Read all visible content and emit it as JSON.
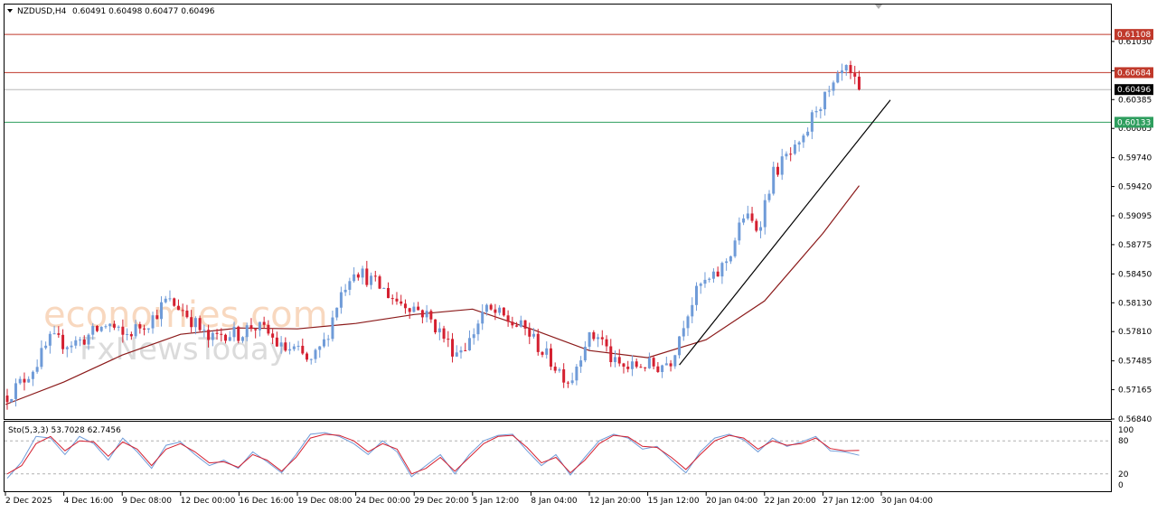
{
  "header": {
    "triangle_icon": "triangle-down-icon",
    "symbol": "NZDUSD,H4",
    "ohlc": "0.60491 0.60498 0.60477 0.60496"
  },
  "watermark": {
    "line1": "economies.com",
    "line2": "FxNewsToday"
  },
  "stochastic": {
    "label": "Sto(5,3,3) 53.7028 62.7456",
    "levels": [
      100,
      80,
      20,
      0
    ]
  },
  "colors": {
    "bull": "#6f9bd8",
    "bear": "#d42030",
    "ma": "#8b1a1a",
    "resistance": "#c0392b",
    "support": "#2e9e5e",
    "current": "#000000",
    "sto_main": "#6f9bd8",
    "sto_signal": "#d42030"
  },
  "chart_data": {
    "type": "candlestick",
    "title": "",
    "symbol": "NZDUSD,H4",
    "ylim": [
      0.5684,
      0.6144
    ],
    "y_ticks": [
      "0.61030",
      "0.60705",
      "0.60385",
      "0.60065",
      "0.59740",
      "0.59420",
      "0.59095",
      "0.58775",
      "0.58450",
      "0.58130",
      "0.57810",
      "0.57485",
      "0.57165",
      "0.56840"
    ],
    "x_ticks": [
      "2 Dec 2025",
      "4 Dec 16:00",
      "9 Dec 08:00",
      "12 Dec 00:00",
      "16 Dec 16:00",
      "19 Dec 08:00",
      "24 Dec 00:00",
      "29 Dec 20:00",
      "5 Jan 12:00",
      "8 Jan 04:00",
      "12 Jan 20:00",
      "15 Jan 12:00",
      "20 Jan 04:00",
      "22 Jan 20:00",
      "27 Jan 12:00",
      "30 Jan 04:00"
    ],
    "horizontal_levels": [
      {
        "value": 0.61108,
        "label": "0.61108",
        "kind": "resistance"
      },
      {
        "value": 0.60684,
        "label": "0.60684",
        "kind": "resistance"
      },
      {
        "value": 0.60496,
        "label": "0.60496",
        "kind": "current"
      },
      {
        "value": 0.60133,
        "label": "0.60133",
        "kind": "support"
      }
    ],
    "trendline": {
      "start": [
        "15 Jan 12:00",
        0.5744
      ],
      "end": [
        "30 Jan 04:00",
        0.6038
      ]
    },
    "moving_average": [
      [
        "2 Dec 2025",
        0.57
      ],
      [
        "4 Dec 16:00",
        0.5725
      ],
      [
        "9 Dec 08:00",
        0.5755
      ],
      [
        "12 Dec 00:00",
        0.5778
      ],
      [
        "16 Dec 16:00",
        0.5785
      ],
      [
        "19 Dec 08:00",
        0.5784
      ],
      [
        "24 Dec 00:00",
        0.579
      ],
      [
        "29 Dec 20:00",
        0.58
      ],
      [
        "5 Jan 12:00",
        0.5806
      ],
      [
        "8 Jan 04:00",
        0.5784
      ],
      [
        "12 Jan 20:00",
        0.576
      ],
      [
        "15 Jan 12:00",
        0.5752
      ],
      [
        "20 Jan 04:00",
        0.5772
      ],
      [
        "22 Jan 20:00",
        0.5815
      ],
      [
        "27 Jan 12:00",
        0.589
      ],
      [
        "29 Jan 20:00",
        0.5943
      ]
    ],
    "price_path": [
      0.571,
      0.5725,
      0.5745,
      0.5772,
      0.5768,
      0.577,
      0.578,
      0.579,
      0.5775,
      0.5785,
      0.5795,
      0.5815,
      0.5808,
      0.579,
      0.577,
      0.578,
      0.5778,
      0.5788,
      0.578,
      0.5762,
      0.576,
      0.5745,
      0.577,
      0.582,
      0.5852,
      0.584,
      0.5828,
      0.5815,
      0.581,
      0.58,
      0.578,
      0.5758,
      0.577,
      0.5805,
      0.58,
      0.579,
      0.5782,
      0.576,
      0.5742,
      0.5725,
      0.577,
      0.5778,
      0.5745,
      0.574,
      0.5745,
      0.5742,
      0.575,
      0.58,
      0.5832,
      0.584,
      0.5865,
      0.591,
      0.5895,
      0.5955,
      0.5975,
      0.5985,
      0.603,
      0.6045,
      0.6072,
      0.6049
    ],
    "stochastic": {
      "main": [
        12,
        42,
        88,
        85,
        55,
        88,
        75,
        45,
        85,
        60,
        30,
        72,
        78,
        55,
        35,
        45,
        30,
        60,
        42,
        22,
        55,
        92,
        95,
        88,
        75,
        55,
        80,
        60,
        15,
        35,
        55,
        20,
        55,
        80,
        90,
        92,
        62,
        35,
        55,
        18,
        50,
        80,
        92,
        85,
        65,
        70,
        45,
        22,
        60,
        85,
        92,
        82,
        60,
        85,
        70,
        78,
        88,
        62,
        60,
        53.7
      ],
      "signal": [
        20,
        35,
        75,
        88,
        62,
        80,
        78,
        52,
        78,
        65,
        35,
        65,
        75,
        60,
        40,
        42,
        32,
        55,
        45,
        25,
        50,
        85,
        92,
        90,
        80,
        60,
        75,
        65,
        20,
        30,
        50,
        25,
        50,
        75,
        88,
        90,
        68,
        40,
        50,
        22,
        45,
        75,
        90,
        87,
        70,
        68,
        50,
        28,
        55,
        80,
        90,
        85,
        65,
        80,
        72,
        75,
        85,
        66,
        62,
        62.7
      ]
    }
  }
}
